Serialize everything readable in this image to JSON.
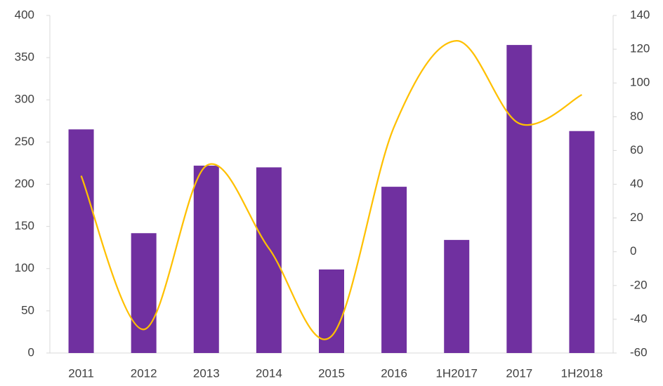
{
  "chart_data": {
    "type": "bar_line",
    "categories": [
      "2011",
      "2012",
      "2013",
      "2014",
      "2015",
      "2016",
      "1H2017",
      "2017",
      "1H2018"
    ],
    "series": [
      {
        "type": "bar",
        "color": "#7030a0",
        "values": [
          265,
          142,
          222,
          220,
          99,
          197,
          134,
          365,
          263
        ]
      },
      {
        "type": "line",
        "axis": "y2",
        "color": "#ffc000",
        "smooth": true,
        "values": [
          45,
          -46,
          51,
          2,
          -50,
          74,
          125,
          76,
          93
        ]
      }
    ],
    "ylim": [
      0,
      400
    ],
    "yticks": [
      0,
      50,
      100,
      150,
      200,
      250,
      300,
      350,
      400
    ],
    "y2lim": [
      -60,
      140
    ],
    "y2ticks": [
      -60,
      -40,
      -20,
      0,
      20,
      40,
      60,
      80,
      100,
      120,
      140
    ],
    "grid": false
  }
}
